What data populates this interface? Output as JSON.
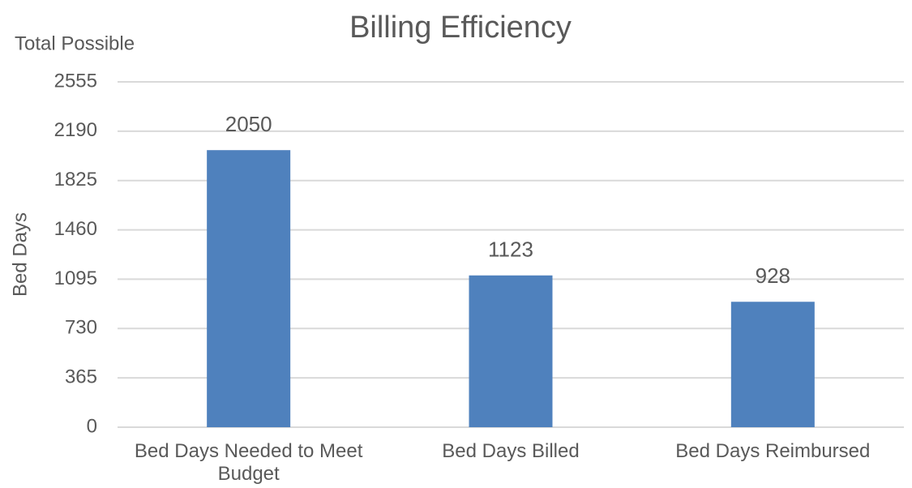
{
  "chart_data": {
    "type": "bar",
    "title": "Billing Efficiency",
    "annotation": "Total Possible",
    "y_label": "Bed Days",
    "categories": [
      "Bed Days Needed to Meet Budget",
      "Bed Days Billed",
      "Bed Days Reimbursed"
    ],
    "values": [
      2050,
      1123,
      928
    ],
    "color": "#4f81bd",
    "ylim": [
      0,
      2555
    ],
    "yticks": [
      0,
      365,
      730,
      1095,
      1460,
      1825,
      2190,
      2555
    ],
    "grid": true
  }
}
